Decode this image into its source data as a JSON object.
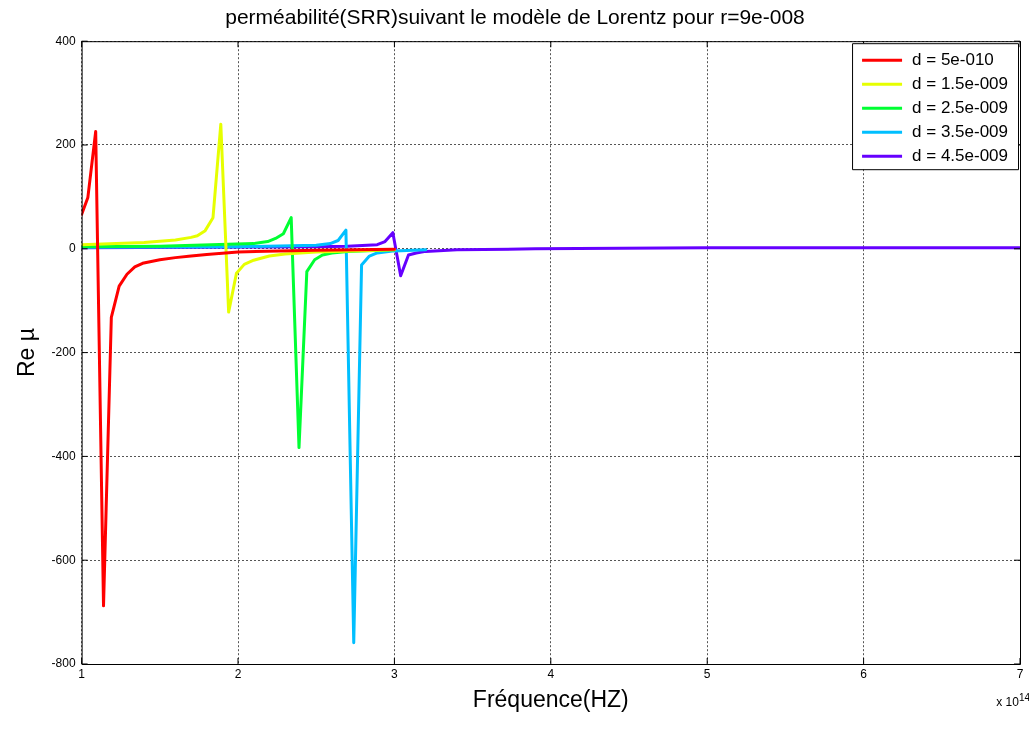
{
  "chart_data": {
    "type": "line",
    "title": "perméabilité(SRR)suivant le modèle de Lorentz pour r=9e-008",
    "xlabel": "Fréquence(HZ)",
    "ylabel": "Re µ",
    "xlim": [
      1,
      7
    ],
    "xticks": [
      1,
      2,
      3,
      4,
      5,
      6,
      7
    ],
    "ylim": [
      -800,
      400
    ],
    "yticks": [
      -800,
      -600,
      -400,
      -200,
      0,
      200,
      400
    ],
    "grid": true,
    "legend": "top right",
    "line_style": "solid",
    "marker": "none",
    "annotations": [
      "x 10$^{14}$"
    ],
    "series": [
      {
        "name": "d = 5e-010",
        "color": "#ff0000",
        "x": [
          1.0,
          1.04,
          1.09,
          1.14,
          1.19,
          1.24,
          1.29,
          1.34,
          1.39,
          1.5,
          1.6,
          1.7,
          1.8,
          2.0,
          2.5,
          3.0
        ],
        "values": [
          66,
          99,
          226,
          -688,
          -132,
          -72,
          -49,
          -35,
          -28,
          -21,
          -17,
          -14,
          -11,
          -6,
          -3,
          -1
        ]
      },
      {
        "name": "d = 1.5e-009",
        "color": "#e6ff00",
        "x": [
          1.0,
          1.4,
          1.6,
          1.7,
          1.74,
          1.79,
          1.84,
          1.89,
          1.94,
          1.99,
          2.04,
          2.1,
          2.2,
          2.3,
          2.5,
          3.0
        ],
        "values": [
          8,
          12,
          17,
          22,
          25,
          35,
          60,
          240,
          -122,
          -47,
          -30,
          -22,
          -14,
          -10,
          -6,
          -2
        ]
      },
      {
        "name": "d = 2.5e-009",
        "color": "#00ff33",
        "x": [
          1.0,
          1.5,
          2.1,
          2.19,
          2.24,
          2.29,
          2.34,
          2.39,
          2.44,
          2.49,
          2.54,
          2.6,
          2.7,
          3.0
        ],
        "values": [
          4,
          5,
          10,
          14,
          20,
          29,
          60,
          -383,
          -44,
          -21,
          -12,
          -8,
          -5,
          -2
        ]
      },
      {
        "name": "d = 3.5e-009",
        "color": "#00bfff",
        "x": [
          1.0,
          2.0,
          2.5,
          2.59,
          2.64,
          2.69,
          2.74,
          2.79,
          2.84,
          2.89,
          3.0,
          3.2
        ],
        "values": [
          3,
          4,
          7,
          10,
          16,
          36,
          -759,
          -31,
          -14,
          -8,
          -4,
          -2
        ]
      },
      {
        "name": "d = 4.5e-009",
        "color": "#6600ff",
        "x": [
          1.0,
          2.5,
          2.7,
          2.89,
          2.94,
          2.99,
          3.04,
          3.09,
          3.14,
          3.2,
          3.4,
          3.9,
          5.0,
          6.0,
          7.0
        ],
        "values": [
          2,
          4,
          5,
          8,
          14,
          31,
          -52,
          -12,
          -8,
          -5,
          -2,
          0,
          2,
          2,
          2
        ]
      }
    ]
  }
}
